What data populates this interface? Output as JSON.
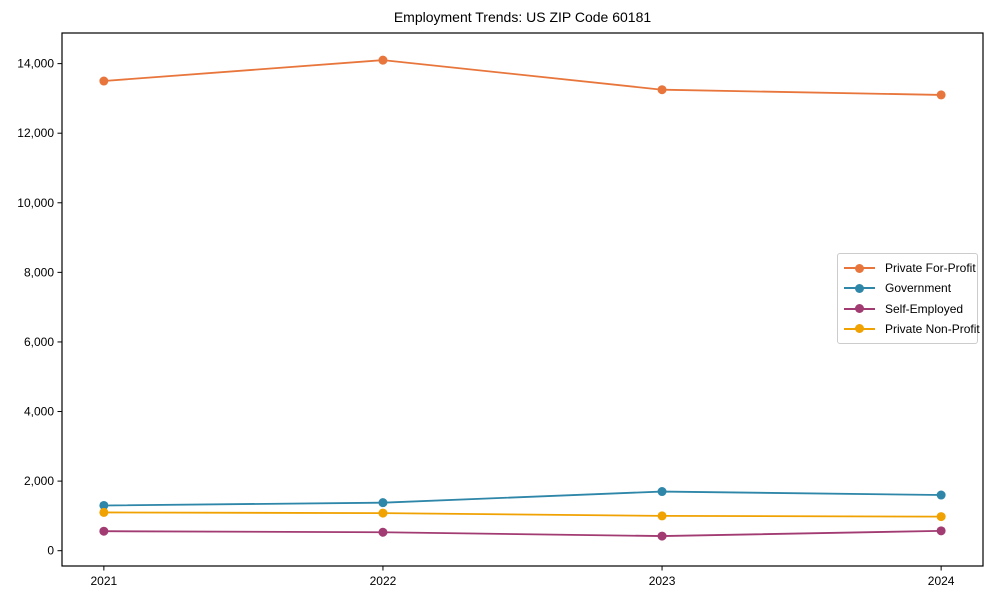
{
  "chart_data": {
    "type": "line",
    "title": "Employment Trends: US ZIP Code 60181",
    "categories": [
      "2021",
      "2022",
      "2023",
      "2024"
    ],
    "series": [
      {
        "name": "Private For-Profit",
        "color": "#e8763c",
        "values": [
          13500,
          14100,
          13250,
          13100
        ]
      },
      {
        "name": "Government",
        "color": "#2e86a8",
        "values": [
          1300,
          1380,
          1700,
          1600
        ]
      },
      {
        "name": "Self-Employed",
        "color": "#a23b72",
        "values": [
          560,
          530,
          420,
          570
        ]
      },
      {
        "name": "Private Non-Profit",
        "color": "#f0a202",
        "values": [
          1100,
          1080,
          1000,
          980
        ]
      }
    ],
    "xlabel": "",
    "ylabel": "",
    "ylim": [
      -440,
      14880
    ],
    "y_ticks": [
      {
        "value": 0,
        "label": "0"
      },
      {
        "value": 2000,
        "label": "2,000"
      },
      {
        "value": 4000,
        "label": "4,000"
      },
      {
        "value": 6000,
        "label": "6,000"
      },
      {
        "value": 8000,
        "label": "8,000"
      },
      {
        "value": 10000,
        "label": "10,000"
      },
      {
        "value": 12000,
        "label": "12,000"
      },
      {
        "value": 14000,
        "label": "14,000"
      }
    ],
    "legend_position": "center-right",
    "grid": false,
    "marker": "circle"
  }
}
